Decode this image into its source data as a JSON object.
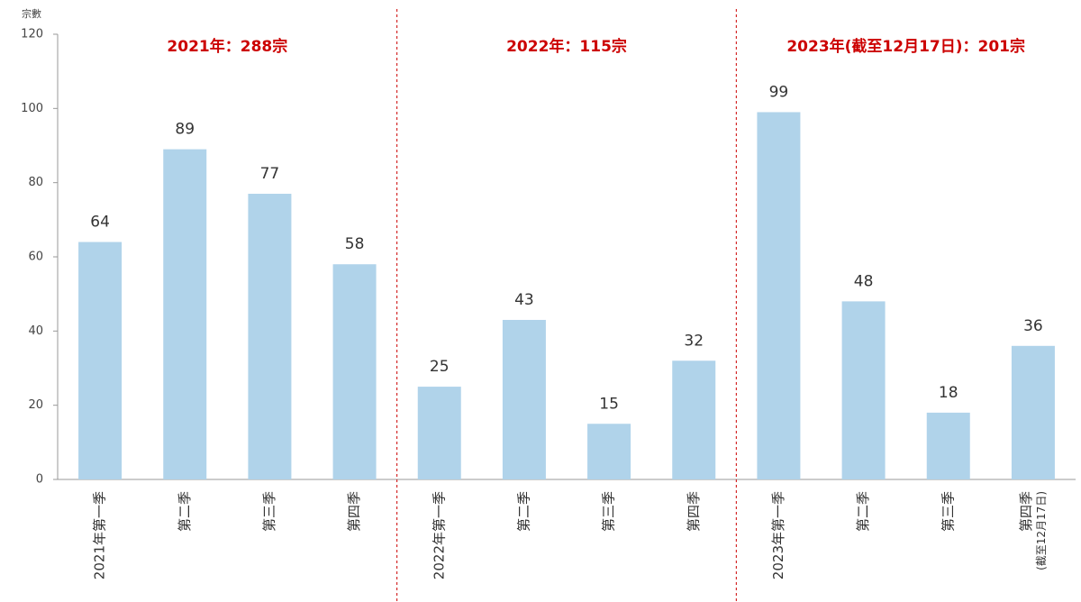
{
  "chart_data": {
    "type": "bar",
    "y_label": "宗數",
    "annotations": [
      "2021年：288宗",
      "2022年：115宗",
      "2023年(截至12月17日)：201宗"
    ],
    "categories": [
      "2021年第一季",
      "第二季",
      "第三季",
      "第四季",
      "2022年第一季",
      "第二季",
      "第三季",
      "第四季",
      "2023年第一季",
      "第二季",
      "第三季",
      "第四季(截至12月17日)"
    ],
    "values": [
      64,
      89,
      77,
      58,
      25,
      43,
      15,
      32,
      99,
      48,
      18,
      36
    ],
    "color": "#b0d3ea",
    "annotation_color": "#cc0000",
    "ylim": [
      0,
      120
    ],
    "yticks": [
      0,
      20,
      40,
      60,
      80,
      100,
      120
    ],
    "grid": false
  }
}
